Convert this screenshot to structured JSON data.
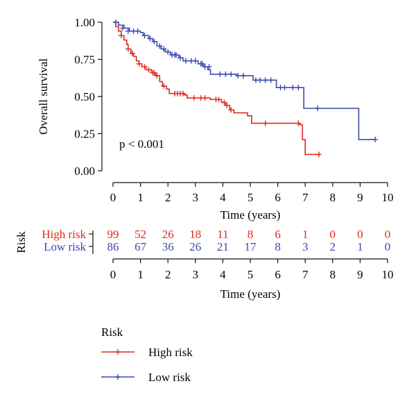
{
  "chart_data": {
    "type": "line",
    "subtype": "kaplan-meier",
    "xlabel": "Time (years)",
    "ylabel": "Overall survival",
    "xlim": [
      0,
      10
    ],
    "ylim": [
      0,
      1
    ],
    "x_ticks": [
      "0",
      "1",
      "2",
      "3",
      "4",
      "5",
      "6",
      "7",
      "8",
      "9",
      "10"
    ],
    "y_ticks": [
      "0.00",
      "0.25",
      "0.50",
      "0.75",
      "1.00"
    ],
    "grid": false,
    "annotation": "p < 0.001",
    "colors": {
      "High risk": "#e02a1f",
      "Low risk": "#3c48b0"
    },
    "series": [
      {
        "name": "High risk",
        "steps": [
          [
            0,
            1.0
          ],
          [
            0.1,
            0.97
          ],
          [
            0.2,
            0.94
          ],
          [
            0.3,
            0.91
          ],
          [
            0.4,
            0.88
          ],
          [
            0.5,
            0.85
          ],
          [
            0.55,
            0.82
          ],
          [
            0.65,
            0.79
          ],
          [
            0.75,
            0.77
          ],
          [
            0.85,
            0.74
          ],
          [
            0.95,
            0.72
          ],
          [
            1.05,
            0.7
          ],
          [
            1.2,
            0.68
          ],
          [
            1.4,
            0.66
          ],
          [
            1.55,
            0.64
          ],
          [
            1.7,
            0.6
          ],
          [
            1.8,
            0.57
          ],
          [
            1.95,
            0.55
          ],
          [
            2.05,
            0.52
          ],
          [
            2.6,
            0.51
          ],
          [
            2.7,
            0.49
          ],
          [
            3.55,
            0.48
          ],
          [
            3.95,
            0.46
          ],
          [
            4.1,
            0.44
          ],
          [
            4.25,
            0.41
          ],
          [
            4.4,
            0.39
          ],
          [
            4.9,
            0.37
          ],
          [
            5.05,
            0.32
          ],
          [
            6.8,
            0.31
          ],
          [
            6.9,
            0.21
          ],
          [
            7.0,
            0.11
          ],
          [
            7.5,
            0.11
          ]
        ],
        "censored": [
          [
            0.3,
            0.91
          ],
          [
            0.55,
            0.82
          ],
          [
            0.7,
            0.79
          ],
          [
            0.95,
            0.72
          ],
          [
            1.15,
            0.7
          ],
          [
            1.3,
            0.68
          ],
          [
            1.45,
            0.66
          ],
          [
            1.5,
            0.66
          ],
          [
            1.6,
            0.64
          ],
          [
            1.85,
            0.57
          ],
          [
            2.25,
            0.52
          ],
          [
            2.35,
            0.52
          ],
          [
            2.45,
            0.52
          ],
          [
            2.55,
            0.52
          ],
          [
            2.95,
            0.49
          ],
          [
            3.2,
            0.49
          ],
          [
            3.35,
            0.49
          ],
          [
            3.75,
            0.48
          ],
          [
            3.85,
            0.48
          ],
          [
            4.05,
            0.46
          ],
          [
            4.15,
            0.44
          ],
          [
            4.3,
            0.41
          ],
          [
            5.55,
            0.32
          ],
          [
            6.75,
            0.32
          ],
          [
            7.5,
            0.11
          ]
        ]
      },
      {
        "name": "Low risk",
        "steps": [
          [
            0,
            1.0
          ],
          [
            0.2,
            0.98
          ],
          [
            0.4,
            0.96
          ],
          [
            0.6,
            0.94
          ],
          [
            1.0,
            0.93
          ],
          [
            1.1,
            0.91
          ],
          [
            1.3,
            0.89
          ],
          [
            1.45,
            0.87
          ],
          [
            1.6,
            0.84
          ],
          [
            1.75,
            0.82
          ],
          [
            1.9,
            0.8
          ],
          [
            2.1,
            0.78
          ],
          [
            2.4,
            0.76
          ],
          [
            2.55,
            0.74
          ],
          [
            3.1,
            0.72
          ],
          [
            3.3,
            0.7
          ],
          [
            3.45,
            0.68
          ],
          [
            3.55,
            0.65
          ],
          [
            4.5,
            0.64
          ],
          [
            5.1,
            0.61
          ],
          [
            5.95,
            0.56
          ],
          [
            6.95,
            0.42
          ],
          [
            8.95,
            0.21
          ],
          [
            9.55,
            0.21
          ]
        ],
        "censored": [
          [
            0.1,
            1.0
          ],
          [
            0.35,
            0.96
          ],
          [
            0.55,
            0.94
          ],
          [
            0.75,
            0.94
          ],
          [
            0.9,
            0.94
          ],
          [
            1.15,
            0.91
          ],
          [
            1.35,
            0.89
          ],
          [
            1.5,
            0.87
          ],
          [
            1.7,
            0.84
          ],
          [
            1.85,
            0.82
          ],
          [
            2.0,
            0.8
          ],
          [
            2.15,
            0.78
          ],
          [
            2.25,
            0.78
          ],
          [
            2.3,
            0.78
          ],
          [
            2.45,
            0.76
          ],
          [
            2.65,
            0.74
          ],
          [
            2.85,
            0.74
          ],
          [
            3.0,
            0.74
          ],
          [
            3.2,
            0.72
          ],
          [
            3.25,
            0.72
          ],
          [
            3.35,
            0.7
          ],
          [
            3.5,
            0.7
          ],
          [
            3.9,
            0.65
          ],
          [
            4.1,
            0.65
          ],
          [
            4.3,
            0.65
          ],
          [
            4.55,
            0.64
          ],
          [
            4.75,
            0.64
          ],
          [
            5.2,
            0.61
          ],
          [
            5.35,
            0.61
          ],
          [
            5.55,
            0.61
          ],
          [
            5.75,
            0.61
          ],
          [
            6.1,
            0.56
          ],
          [
            6.25,
            0.56
          ],
          [
            6.55,
            0.56
          ],
          [
            6.75,
            0.56
          ],
          [
            7.45,
            0.42
          ],
          [
            9.55,
            0.21
          ]
        ]
      }
    ],
    "risk_table": {
      "title": "Risk",
      "xlabel": "Time (years)",
      "rows": [
        {
          "name": "High risk",
          "counts": [
            "99",
            "52",
            "26",
            "18",
            "11",
            "8",
            "6",
            "1",
            "0",
            "0",
            "0"
          ]
        },
        {
          "name": "Low risk",
          "counts": [
            "86",
            "67",
            "36",
            "26",
            "21",
            "17",
            "8",
            "3",
            "2",
            "1",
            "0"
          ]
        }
      ]
    },
    "legend": {
      "title": "Risk",
      "position": "bottom-left",
      "entries": [
        "High risk",
        "Low risk"
      ]
    }
  }
}
